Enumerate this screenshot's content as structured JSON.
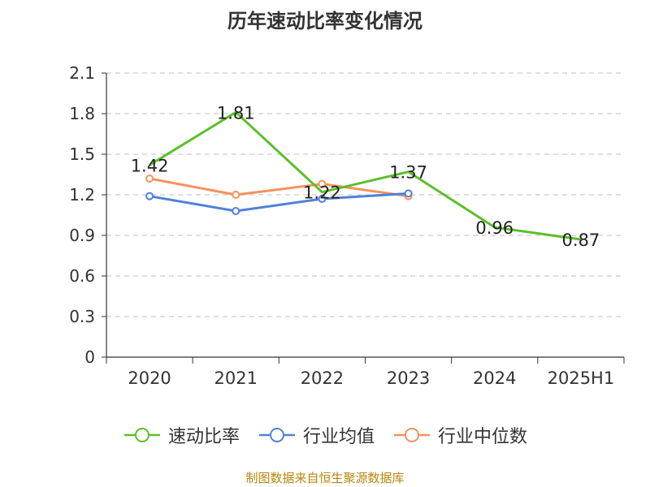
{
  "page": {
    "title": "历年速动比率变化情况",
    "source": "制图数据来自恒生聚源数据库"
  },
  "chart_data": {
    "type": "line",
    "title": "历年速动比率变化情况",
    "categories": [
      "2020",
      "2021",
      "2022",
      "2023",
      "2024",
      "2025H1"
    ],
    "ylim": [
      0,
      2.1
    ],
    "yticks": [
      "0",
      "0.3",
      "0.6",
      "0.9",
      "1.2",
      "1.5",
      "1.8",
      "2.1"
    ],
    "grid": true,
    "legend_position": "bottom",
    "series": [
      {
        "name": "速动比率",
        "color": "#5cbf2a",
        "values": [
          1.42,
          1.81,
          1.22,
          1.37,
          0.96,
          0.87
        ],
        "labels": [
          "1.42",
          "1.81",
          "1.22",
          "1.37",
          "0.96",
          "0.87"
        ]
      },
      {
        "name": "行业均值",
        "color": "#4f81d9",
        "values": [
          1.19,
          1.08,
          1.17,
          1.21,
          null,
          null
        ]
      },
      {
        "name": "行业中位数",
        "color": "#f4925e",
        "values": [
          1.32,
          1.2,
          1.28,
          1.19,
          null,
          null
        ]
      }
    ]
  }
}
